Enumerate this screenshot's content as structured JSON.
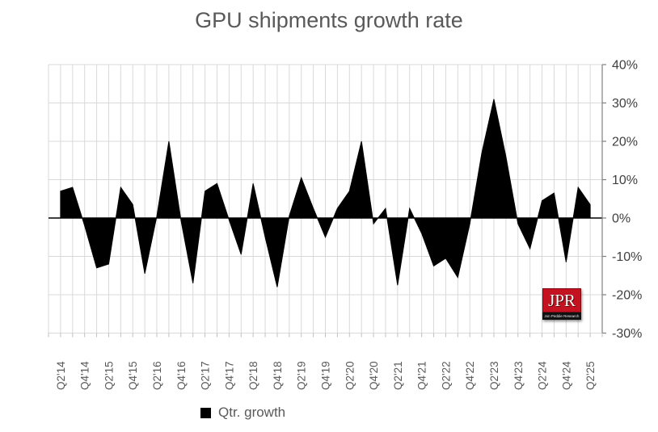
{
  "title": "GPU shipments growth rate",
  "legend": {
    "label": "Qtr. growth",
    "swatch_color": "#000000"
  },
  "logo": {
    "text": "JPR",
    "subtext": "Jon Peddie Research",
    "bg_color": "#c41220"
  },
  "colors": {
    "series_fill": "#000000",
    "gridline": "#d9d9d9",
    "zero_line": "#000000",
    "axis_line": "#808080",
    "tick": "#bfbfbf",
    "label_text": "#595959",
    "ytick_text": "#404040",
    "title_text": "#595959"
  },
  "chart_data": {
    "type": "area",
    "title": "GPU shipments growth rate",
    "legend": "Qtr. growth",
    "legend_position": "bottom",
    "grid": true,
    "ylim": [
      -30,
      40
    ],
    "y_ticks": [
      {
        "label": "40%",
        "value": 40
      },
      {
        "label": "30%",
        "value": 30
      },
      {
        "label": "20%",
        "value": 20
      },
      {
        "label": "10%",
        "value": 10
      },
      {
        "label": "0%",
        "value": 0
      },
      {
        "label": "-10%",
        "value": -10
      },
      {
        "label": "-20%",
        "value": -20
      },
      {
        "label": "-30%",
        "value": -30
      }
    ],
    "x_tick_every": 2,
    "categories": [
      "Q2'14",
      "Q3'14",
      "Q4'14",
      "Q1'15",
      "Q2'15",
      "Q3'15",
      "Q4'15",
      "Q1'16",
      "Q2'16",
      "Q3'16",
      "Q4'16",
      "Q1'17",
      "Q2'17",
      "Q3'17",
      "Q4'17",
      "Q1'18",
      "Q2'18",
      "Q3'18",
      "Q4'18",
      "Q1'19",
      "Q2'19",
      "Q3'19",
      "Q4'19",
      "Q1'20",
      "Q2'20",
      "Q3'20",
      "Q4'20",
      "Q1'21",
      "Q2'21",
      "Q3'21",
      "Q4'21",
      "Q1'22",
      "Q2'22",
      "Q3'22",
      "Q4'22",
      "Q1'23",
      "Q2'23",
      "Q3'23",
      "Q4'23",
      "Q1'24",
      "Q2'24",
      "Q3'24",
      "Q4'24",
      "Q1'25",
      "Q2'25"
    ],
    "values": [
      7,
      8,
      -2,
      -13,
      -12,
      8,
      3.5,
      -14.5,
      0.5,
      20,
      -0.5,
      -17,
      7,
      9,
      -0.5,
      -9.5,
      9,
      -5,
      -18,
      0.5,
      10.5,
      2.5,
      -5,
      2.5,
      7,
      20,
      -1.5,
      2.5,
      -17.5,
      2.5,
      -4,
      -12.5,
      -10.5,
      -15.5,
      -1.5,
      17,
      31,
      16,
      -1.5,
      -8,
      4.5,
      6.5,
      -11.5,
      8,
      3.5
    ]
  }
}
